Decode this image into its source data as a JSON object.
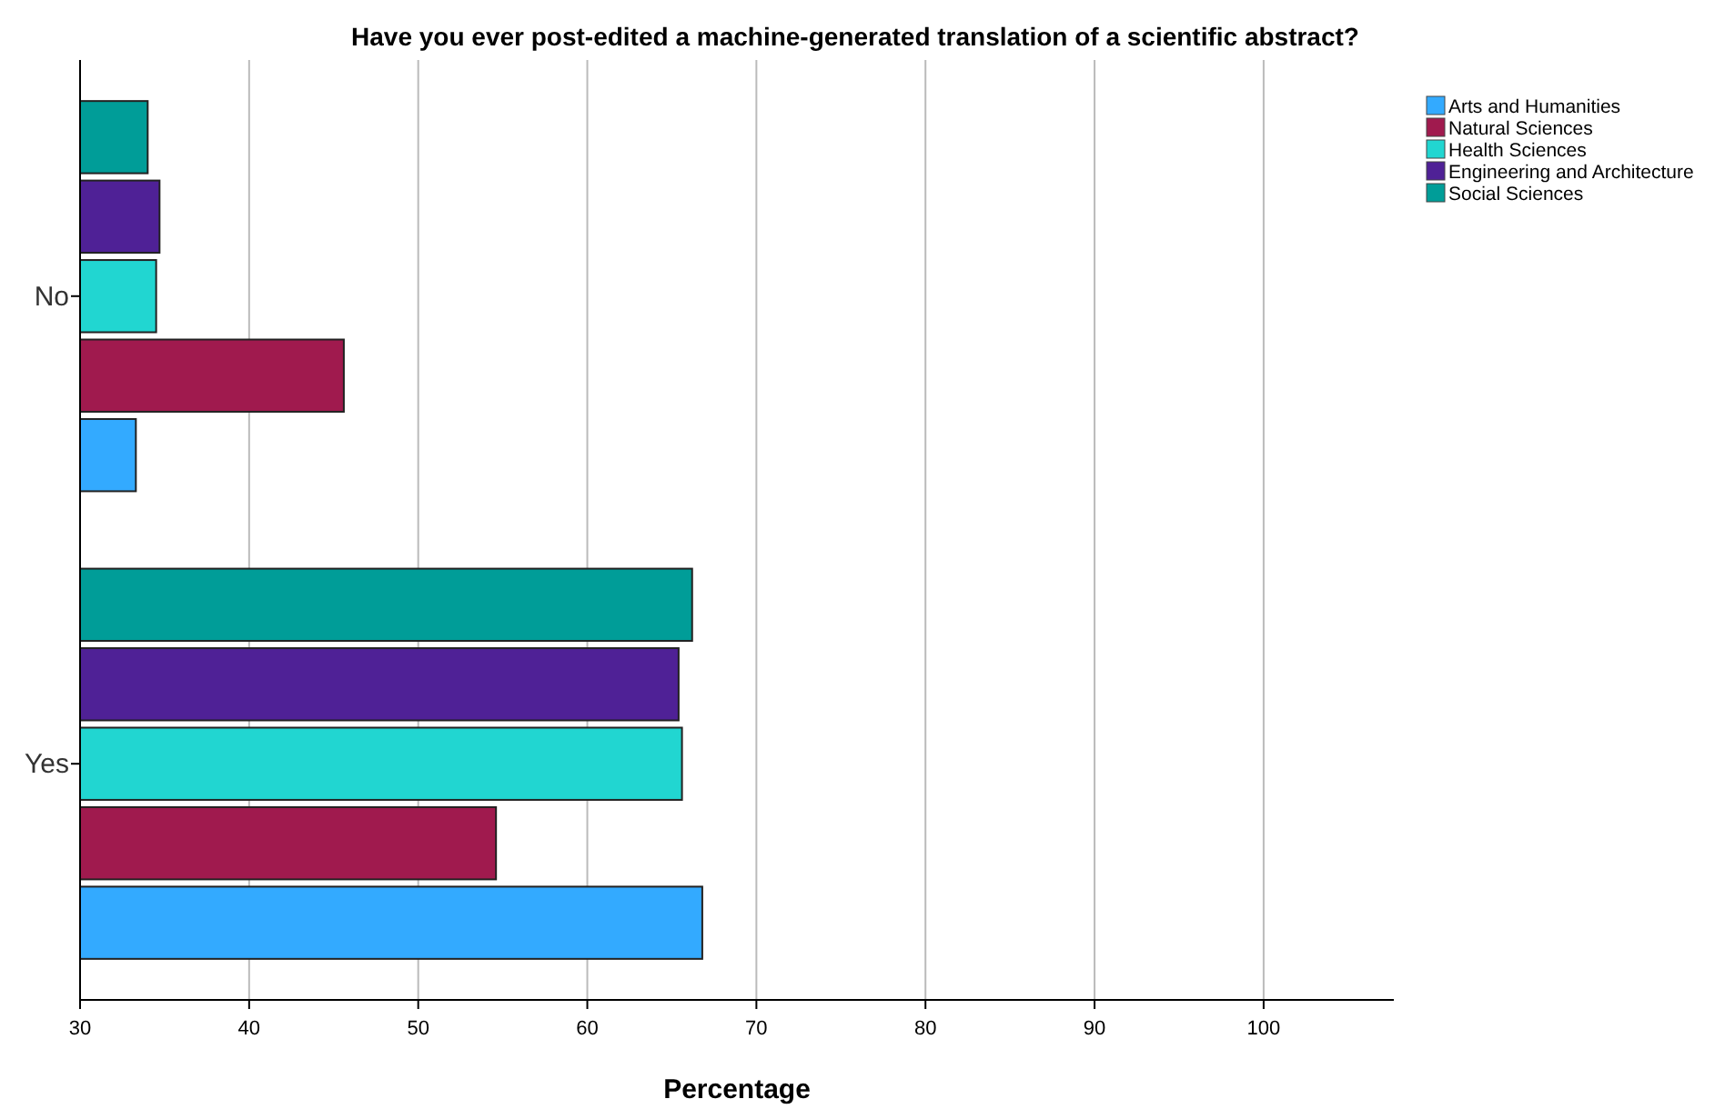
{
  "chart_data": {
    "type": "bar",
    "orientation": "horizontal",
    "title": "Have you ever post-edited a machine-generated translation of a scientific abstract?",
    "xlabel": "Percentage",
    "categories": [
      "No",
      "Yes"
    ],
    "series": [
      {
        "name": "Arts and Humanities",
        "color": "#33aaff",
        "values": [
          33.3,
          66.8
        ]
      },
      {
        "name": "Natural Sciences",
        "color": "#a01a4e",
        "values": [
          45.6,
          54.6
        ]
      },
      {
        "name": "Health Sciences",
        "color": "#21d6d1",
        "values": [
          34.5,
          65.6
        ]
      },
      {
        "name": "Engineering and Architecture",
        "color": "#4f2196",
        "values": [
          34.7,
          65.4
        ]
      },
      {
        "name": "Social Sciences",
        "color": "#009d98",
        "values": [
          34.0,
          66.2
        ]
      }
    ],
    "xlim": [
      30,
      107.7
    ],
    "xticks": [
      30,
      40,
      50,
      60,
      70,
      80,
      90,
      100
    ],
    "grid": "x",
    "legend": "top right"
  }
}
